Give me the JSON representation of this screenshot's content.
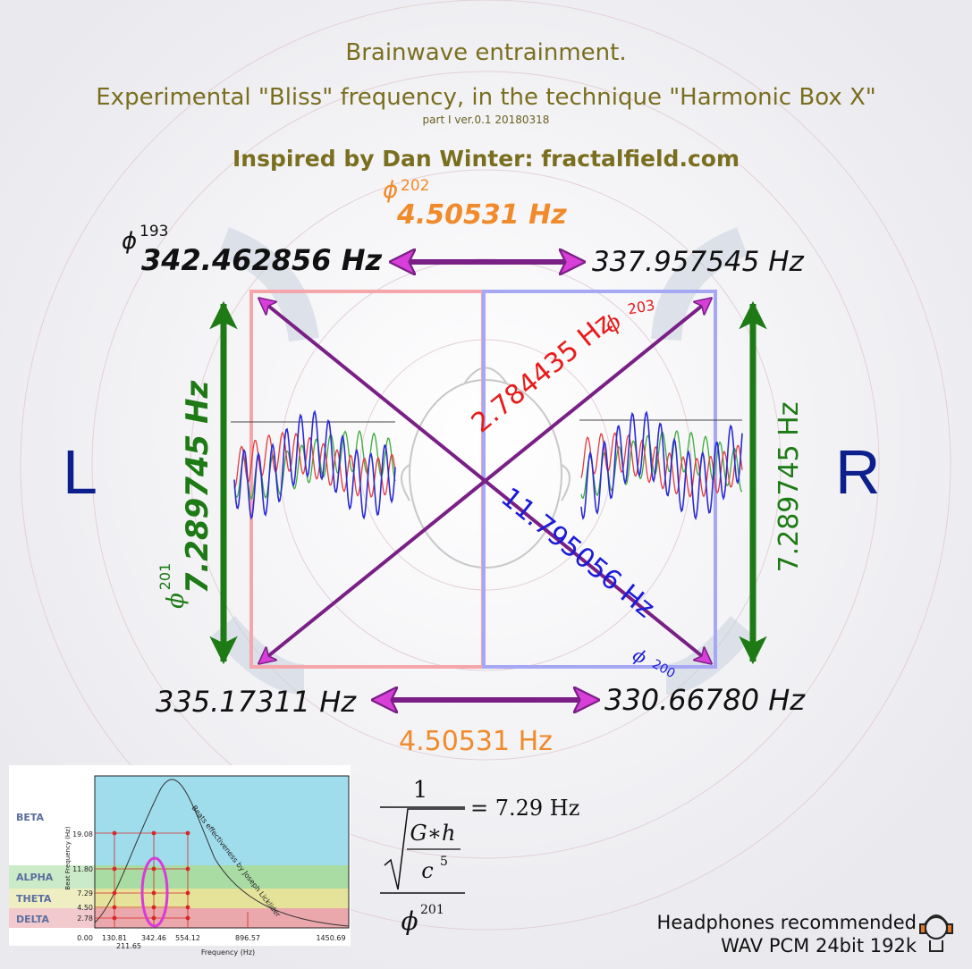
{
  "header": {
    "title": "Brainwave entrainment.",
    "subtitle": "Experimental \"Bliss\" frequency, in the technique \"Harmonic Box X\"",
    "version": "part I ver.0.1 20180318",
    "inspired": "Inspired by Dan Winter: fractalfield.com"
  },
  "diagram": {
    "phi_top": "ϕ",
    "exp_top": "202",
    "top_beat": "4.50531 Hz",
    "phi_tl": "ϕ",
    "exp_tl": "193",
    "freq_tl": "342.462856 Hz",
    "freq_tr": "337.957545 Hz",
    "freq_bl": "335.17311 Hz",
    "freq_br": "330.66780 Hz",
    "bottom_beat": "4.50531 Hz",
    "left_beat": "7.289745 Hz",
    "phi_left": "ϕ",
    "exp_left": "201",
    "right_beat": "7.289745 Hz",
    "diag_red": "2.784435 Hz",
    "phi_red": "ϕ",
    "exp_red": "203",
    "diag_blue": "11.795056 Hz",
    "phi_blue": "ϕ",
    "exp_blue": "200",
    "side_left": "L",
    "side_right": "R"
  },
  "formula": {
    "num": "1",
    "sqrt_num": "G∗h",
    "sqrt_den": "c",
    "c_exp": "5",
    "den_phi": "ϕ",
    "den_exp": "201",
    "result": "= 7.29 Hz"
  },
  "inset": {
    "bands": [
      "BETA",
      "ALPHA",
      "THETA",
      "DELTA"
    ],
    "y_ticks": [
      "19.08",
      "11.80",
      "7.29",
      "4.50",
      "2.78"
    ],
    "x_ticks": [
      "0.00",
      "130.81",
      "342.46",
      "554.12",
      "896.57",
      "1450.69"
    ],
    "x_tick_low": "211.65",
    "x_label": "Frequency (Hz)",
    "y_label": "Beat Frequency (Hz)",
    "curve_label": "Beats effectiveness by Joseph Licklider"
  },
  "footer": {
    "line1": "Headphones recommended",
    "line2": "WAV PCM 24bit 192k"
  },
  "colors": {
    "title": "#7a6e1f",
    "orange": "#f08a2a",
    "magenta": "#d83fd8",
    "purple": "#7a1f86",
    "green": "#1d7a14",
    "red": "#e81b1b",
    "blue": "#1b1bd8",
    "navy": "#0d1f8c"
  }
}
